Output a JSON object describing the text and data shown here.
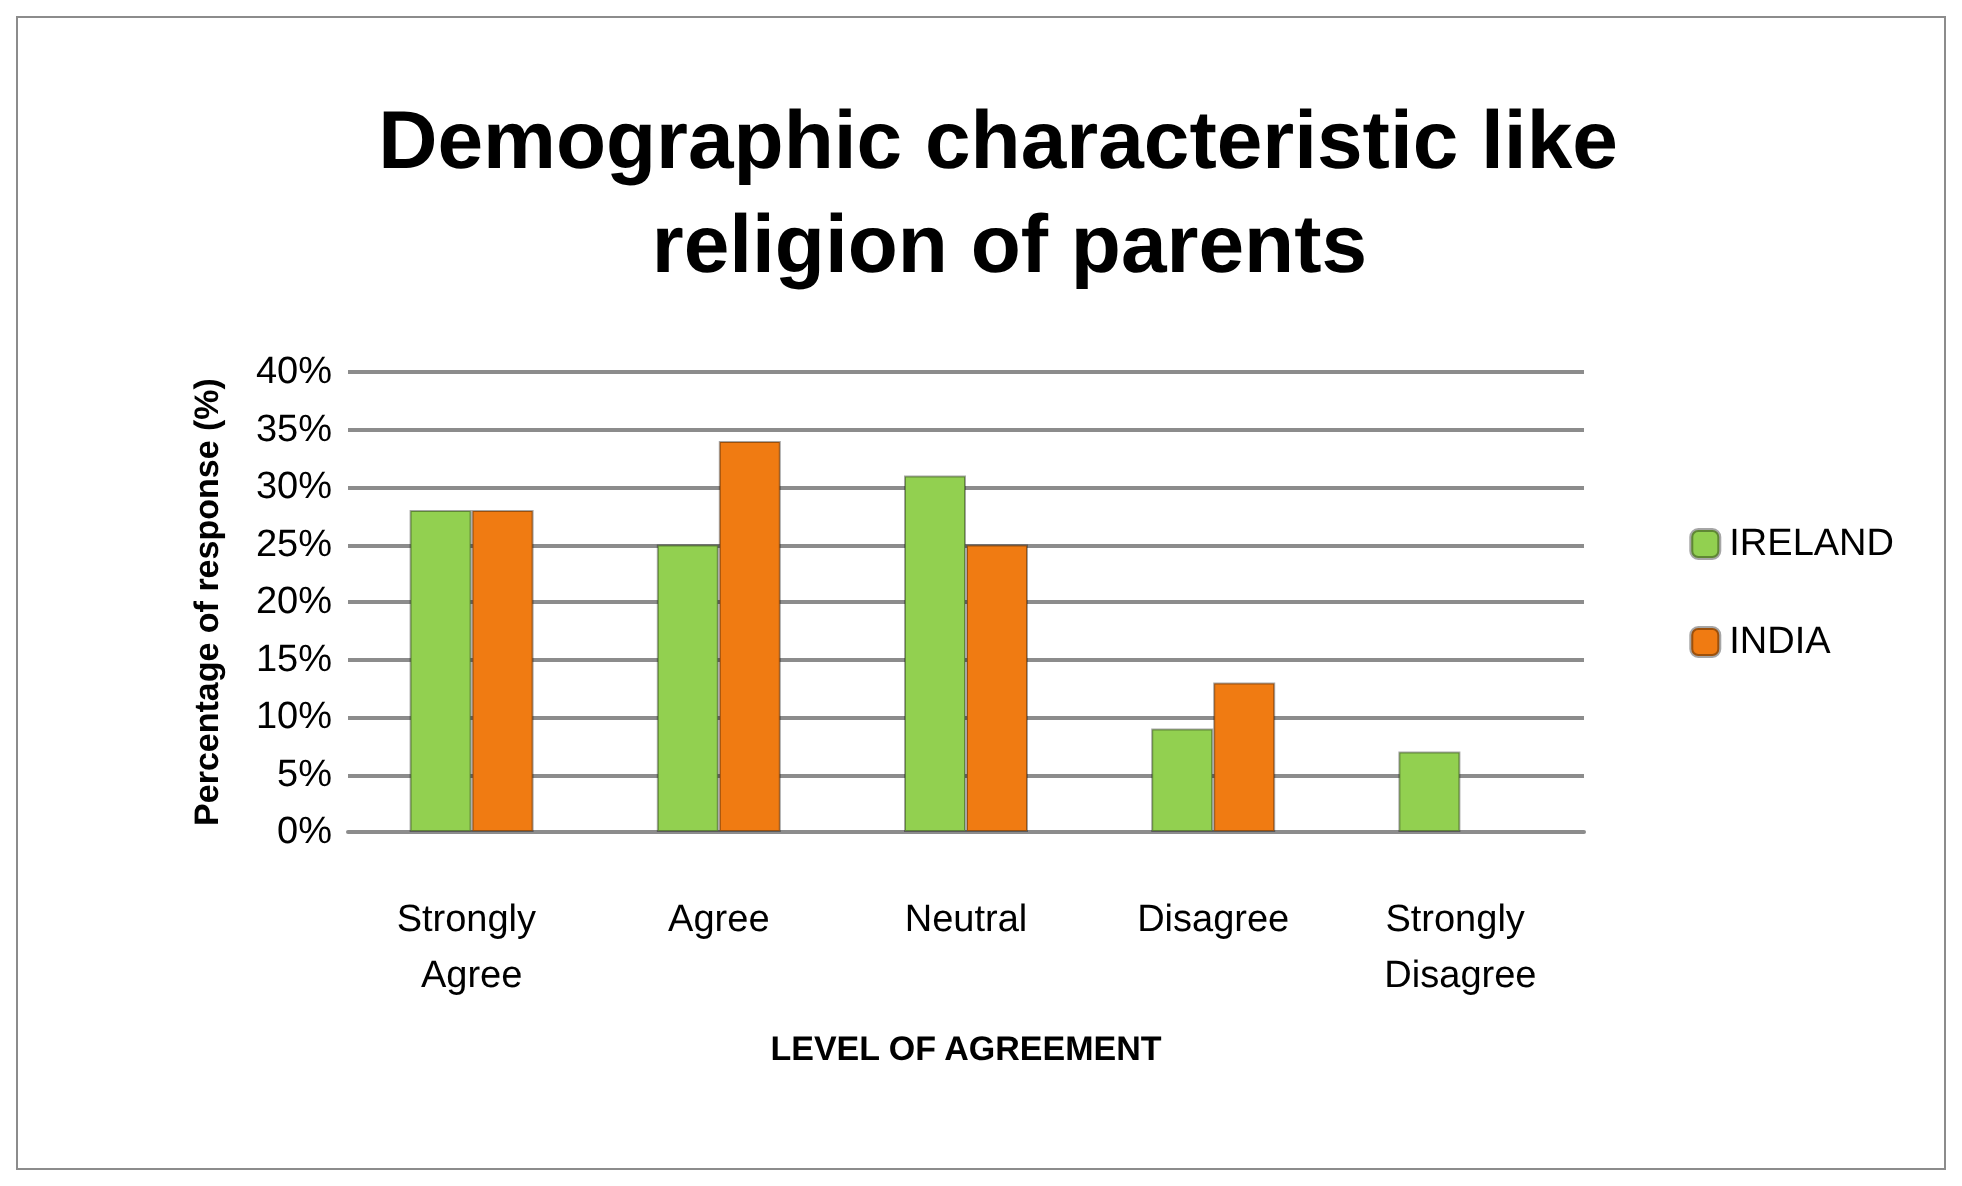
{
  "chart_data": {
    "type": "bar",
    "title": "Demographic characteristic like religion of parents",
    "xlabel": "LEVEL OF AGREEMENT",
    "ylabel": "Percentage of response (%)",
    "categories": [
      "Strongly Agree",
      "Agree",
      "Neutral",
      "Disagree",
      "Strongly Disagree"
    ],
    "series": [
      {
        "name": "IRELAND",
        "color": "#92d050",
        "values": [
          28,
          25,
          31,
          9,
          7
        ]
      },
      {
        "name": "INDIA",
        "color": "#f07b12",
        "values": [
          28,
          34,
          25,
          13,
          null
        ]
      }
    ],
    "ylim": [
      0,
      40
    ],
    "yticks": [
      {
        "value": 0,
        "label": "0%"
      },
      {
        "value": 5,
        "label": "5%"
      },
      {
        "value": 10,
        "label": "10%"
      },
      {
        "value": 15,
        "label": "15%"
      },
      {
        "value": 20,
        "label": "20%"
      },
      {
        "value": 25,
        "label": "25%"
      },
      {
        "value": 30,
        "label": "30%"
      },
      {
        "value": 35,
        "label": "35%"
      },
      {
        "value": 40,
        "label": "40%"
      }
    ],
    "grid": "y",
    "legend": "right"
  }
}
